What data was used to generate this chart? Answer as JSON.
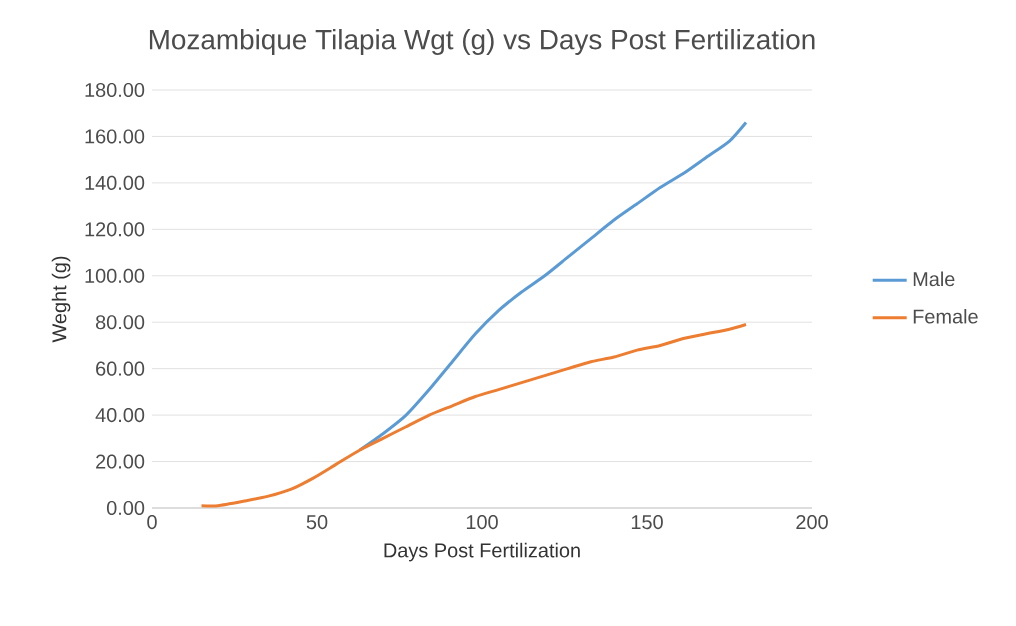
{
  "chart_data": {
    "type": "line",
    "title": "Mozambique Tilapia Wgt (g) vs Days Post Fertilization",
    "xlabel": "Days Post Fertilization",
    "ylabel": "Weght (g)",
    "xlim": [
      0,
      200
    ],
    "xticks": [
      0,
      50,
      100,
      150,
      200
    ],
    "ylim": [
      0,
      180
    ],
    "yticks": [
      {
        "value": 0,
        "label": "0.00"
      },
      {
        "value": 20,
        "label": "20.00"
      },
      {
        "value": 40,
        "label": "40.00"
      },
      {
        "value": 60,
        "label": "60.00"
      },
      {
        "value": 80,
        "label": "80.00"
      },
      {
        "value": 100,
        "label": "100.00"
      },
      {
        "value": 120,
        "label": "120.00"
      },
      {
        "value": 140,
        "label": "140.00"
      },
      {
        "value": 160,
        "label": "160.00"
      },
      {
        "value": 180,
        "label": "180.00"
      }
    ],
    "grid": "y",
    "legend": "right",
    "marker": "none",
    "line_style": "solid",
    "series": [
      {
        "name": "Male",
        "color": "#5b9bd5",
        "x": [
          63,
          70,
          77,
          84,
          91,
          98,
          105,
          112,
          119,
          126,
          133,
          140,
          147,
          154,
          161,
          168,
          175,
          180
        ],
        "values": [
          25,
          32,
          40,
          51,
          63,
          75,
          85,
          93,
          100,
          108,
          116,
          124,
          131,
          138,
          144,
          151,
          158,
          166
        ]
      },
      {
        "name": "Female",
        "color": "#ed7d31",
        "x": [
          15,
          20,
          28,
          35,
          42,
          49,
          56,
          63,
          70,
          77,
          84,
          91,
          98,
          105,
          112,
          119,
          126,
          133,
          140,
          147,
          154,
          161,
          168,
          175,
          180
        ],
        "values": [
          1,
          1,
          3,
          5,
          8,
          13,
          19,
          25,
          30,
          35,
          40,
          44,
          48,
          51,
          54,
          57,
          60,
          63,
          65,
          68,
          70,
          73,
          75,
          77,
          79
        ]
      }
    ]
  }
}
